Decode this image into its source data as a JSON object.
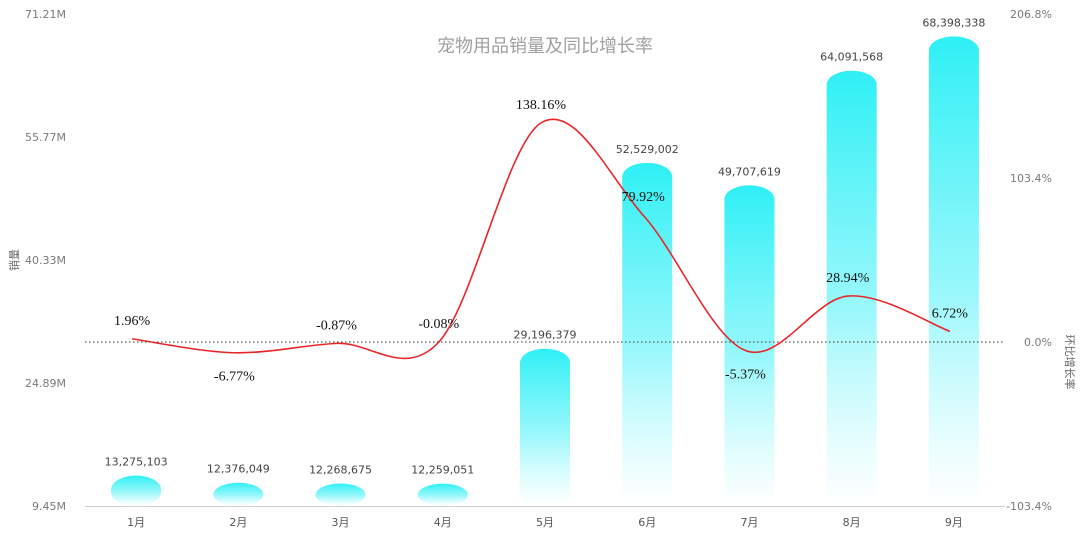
{
  "chart_data": {
    "type": "bar",
    "title": "宠物用品销量及同比增长率",
    "categories": [
      "1月",
      "2月",
      "3月",
      "4月",
      "5月",
      "6月",
      "7月",
      "8月",
      "9月"
    ],
    "series": [
      {
        "name": "销量",
        "type": "bar",
        "values": [
          13275103,
          12376049,
          12268675,
          12259051,
          29196379,
          52529002,
          49707619,
          64091568,
          68398338
        ],
        "labels": [
          "13,275,103",
          "12,376,049",
          "12,268,675",
          "12,259,051",
          "29,196,379",
          "52,529,002",
          "49,707,619",
          "64,091,568",
          "68,398,338"
        ],
        "color": "#2ef0f5"
      },
      {
        "name": "环比增长率",
        "type": "line",
        "values": [
          1.96,
          -6.77,
          -0.87,
          -0.08,
          138.16,
          79.92,
          -5.37,
          28.94,
          6.72
        ],
        "labels": [
          "1.96%",
          "-6.77%",
          "-0.87%",
          "-0.08%",
          "138.16%",
          "79.92%",
          "-5.37%",
          "28.94%",
          "6.72%"
        ],
        "color": "#e8262a"
      }
    ],
    "ylabel_left": "销量",
    "ylabel_right": "环比增长率",
    "yticks_left": [
      "71.21M",
      "55.77M",
      "40.33M",
      "24.89M",
      "9.45M"
    ],
    "yticks_right": [
      "206.8%",
      "103.4%",
      "0.0%",
      "-103.4%"
    ],
    "ylim_left": [
      9450000,
      71210000
    ],
    "ylim_right": [
      -103.4,
      206.8
    ],
    "reference_line": 0.0,
    "grid": false,
    "legend": "none"
  }
}
